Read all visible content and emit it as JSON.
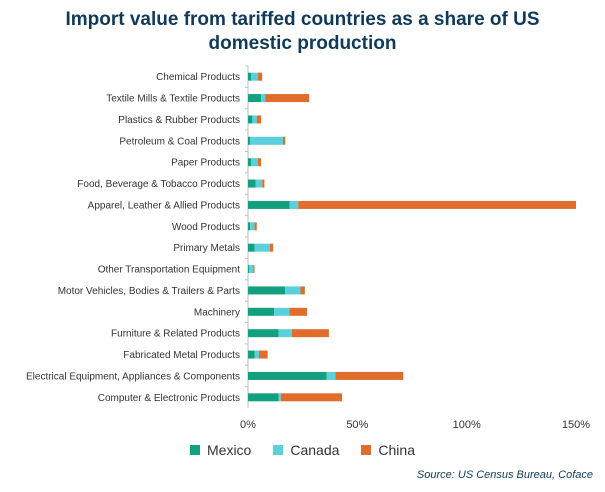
{
  "chart_data": {
    "type": "bar",
    "orientation": "horizontal",
    "stacked": true,
    "title": "Import value from tariffed countries as a share of US domestic production",
    "title_lines": [
      "Import value from tariffed countries as a share of US",
      "domestic production"
    ],
    "categories": [
      "Chemical Products",
      "Textile Mills & Textile Products",
      "Plastics & Rubber Products",
      "Petroleum & Coal Products",
      "Paper Products",
      "Food, Beverage & Tobacco Products",
      "Apparel, Leather & Allied Products",
      "Wood Products",
      "Primary Metals",
      "Other Transportation Equipment",
      "Motor Vehicles, Bodies & Trailers & Parts",
      "Machinery",
      "Furniture & Related Products",
      "Fabricated Metal Products",
      "Electrical Equipment, Appliances & Components",
      "Computer & Electronic Products"
    ],
    "series": [
      {
        "name": "Mexico",
        "color": "#13a07f",
        "values": [
          1.5,
          6,
          2,
          1,
          1.5,
          3.5,
          19,
          1,
          3,
          0.5,
          17,
          12,
          14,
          3,
          36,
          14
        ]
      },
      {
        "name": "Canada",
        "color": "#5bcfdc",
        "values": [
          3,
          2,
          2,
          15,
          3,
          3,
          4,
          2,
          7,
          2,
          7,
          7,
          6,
          2,
          4,
          1
        ]
      },
      {
        "name": "China",
        "color": "#e06d2b",
        "values": [
          2,
          20,
          2,
          1,
          1.5,
          1,
          127,
          1,
          1.5,
          0.5,
          2,
          8,
          17,
          4,
          31,
          28
        ]
      }
    ],
    "x_ticks": [
      "0%",
      "50%",
      "100%",
      "150%"
    ],
    "x_tick_values": [
      0,
      50,
      100,
      150
    ],
    "xlim": [
      0,
      150
    ],
    "grid": false,
    "legend_position": "bottom"
  },
  "legend": [
    {
      "label": "Mexico",
      "color": "#13a07f"
    },
    {
      "label": "Canada",
      "color": "#5bcfdc"
    },
    {
      "label": "China",
      "color": "#e06d2b"
    }
  ],
  "source": "Source: US Census Bureau, Coface"
}
